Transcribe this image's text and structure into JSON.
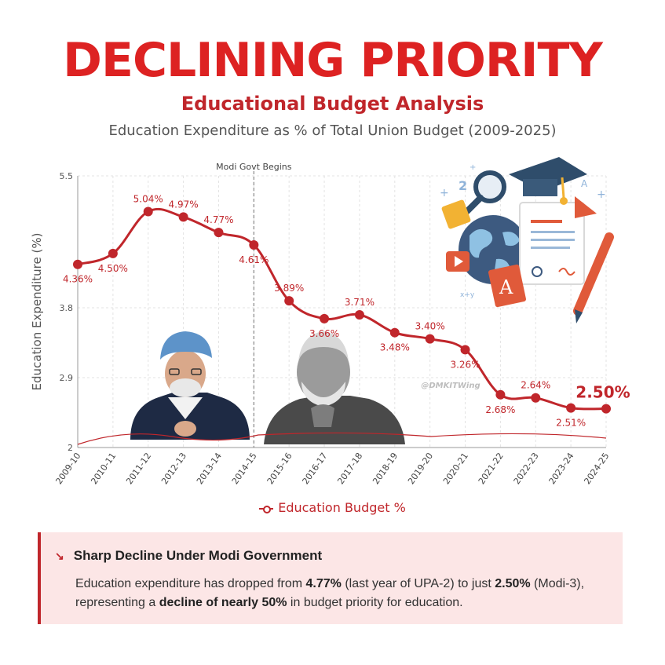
{
  "header": {
    "title": "DECLINING PRIORITY",
    "subtitle": "Educational Budget Analysis",
    "caption": "Education Expenditure as % of Total Union Budget (2009-2025)"
  },
  "chart_data": {
    "type": "line",
    "categories": [
      "2009-10",
      "2010-11",
      "2011-12",
      "2012-13",
      "2013-14",
      "2014-15",
      "2015-16",
      "2016-17",
      "2017-18",
      "2018-19",
      "2019-20",
      "2020-21",
      "2021-22",
      "2022-23",
      "2023-24",
      "2024-25"
    ],
    "series": [
      {
        "name": "Education Budget %",
        "values": [
          4.36,
          4.5,
          5.04,
          4.97,
          4.77,
          4.61,
          3.89,
          3.66,
          3.71,
          3.48,
          3.4,
          3.26,
          2.68,
          2.64,
          2.51,
          2.5
        ],
        "labels": [
          "4.36%",
          "4.50%",
          "5.04%",
          "4.97%",
          "4.77%",
          "4.61%",
          "3.89%",
          "3.66%",
          "3.71%",
          "3.48%",
          "3.40%",
          "3.26%",
          "2.68%",
          "2.64%",
          "2.51%",
          ""
        ]
      }
    ],
    "highlight_label": "2.50%",
    "ylabel": "Education Expenditure (%)",
    "yticks": [
      2,
      2.9,
      3.8,
      5.5
    ],
    "ytick_labels": [
      "2",
      "2.9",
      "3.8",
      "5.5"
    ],
    "ylim": [
      2,
      5.5
    ],
    "annotation": "Modi Govt Begins",
    "annotation_category": "2014-15",
    "watermark": "@DMKITWing",
    "grid": true,
    "colors": {
      "line": "#c0262b",
      "grid": "#e3e3e3",
      "title": "#dd2222"
    }
  },
  "legend": {
    "label": "Education Budget %"
  },
  "insight": {
    "icon": "trend-down-icon",
    "title": "Sharp Decline Under Modi Government",
    "p1": "Education expenditure has dropped from ",
    "b1": "4.77%",
    "p2": " (last year of UPA-2) to just ",
    "b2": "2.50%",
    "p3": " (Modi-3), representing a ",
    "b3": "decline of nearly 50%",
    "p4": " in budget priority for education."
  }
}
